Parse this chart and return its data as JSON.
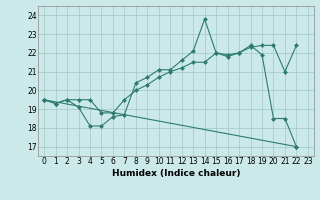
{
  "xlabel": "Humidex (Indice chaleur)",
  "background_color": "#cce9e9",
  "grid_color": "#aacccc",
  "line_color": "#2d7b6f",
  "x_ticks": [
    0,
    1,
    2,
    3,
    4,
    5,
    6,
    7,
    8,
    9,
    10,
    11,
    12,
    13,
    14,
    15,
    16,
    17,
    18,
    19,
    20,
    21,
    22,
    23
  ],
  "y_ticks": [
    17,
    18,
    19,
    20,
    21,
    22,
    23,
    24
  ],
  "ylim": [
    16.5,
    24.5
  ],
  "xlim": [
    -0.5,
    23.5
  ],
  "line1_y": [
    19.5,
    19.3,
    19.5,
    19.1,
    18.1,
    18.1,
    18.6,
    18.7,
    20.4,
    20.7,
    21.1,
    21.1,
    21.6,
    22.1,
    23.8,
    22.0,
    21.9,
    22.0,
    22.4,
    21.9,
    18.5,
    18.5,
    17.0,
    null
  ],
  "line2_y": [
    19.5,
    19.3,
    19.5,
    19.5,
    19.5,
    18.8,
    18.8,
    19.5,
    20.0,
    20.3,
    20.7,
    21.0,
    21.2,
    21.5,
    21.5,
    22.0,
    21.8,
    22.0,
    22.3,
    22.4,
    22.4,
    21.0,
    22.4,
    null
  ],
  "line3_x": [
    0,
    22
  ],
  "line3_y": [
    19.5,
    17.0
  ],
  "marker_size": 2.5,
  "line_width": 0.8
}
